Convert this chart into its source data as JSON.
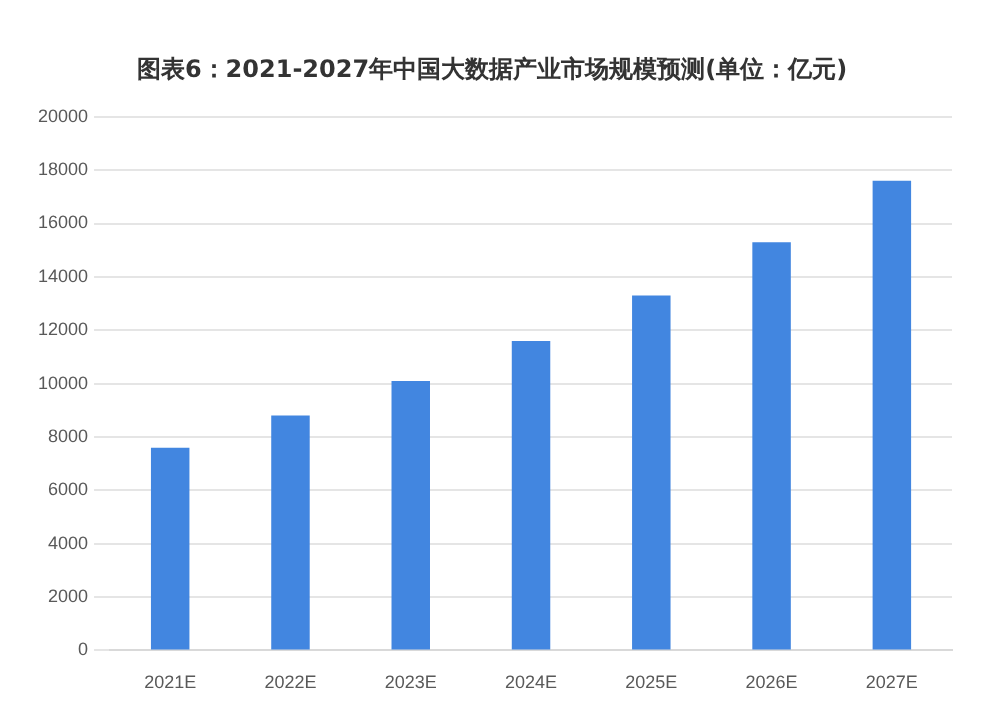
{
  "chart_data": {
    "type": "bar",
    "title": "图表6：2021-2027年中国大数据产业市场规模预测(单位：亿元)",
    "categories": [
      "2021E",
      "2022E",
      "2023E",
      "2024E",
      "2025E",
      "2026E",
      "2027E"
    ],
    "values": [
      7600,
      8800,
      10100,
      11600,
      13300,
      15300,
      17600
    ],
    "color": "#4286e0",
    "ylim": [
      0,
      20000
    ],
    "yticks": [
      0,
      2000,
      4000,
      6000,
      8000,
      10000,
      12000,
      14000,
      16000,
      18000,
      20000
    ],
    "grid": "y",
    "legend": false
  }
}
